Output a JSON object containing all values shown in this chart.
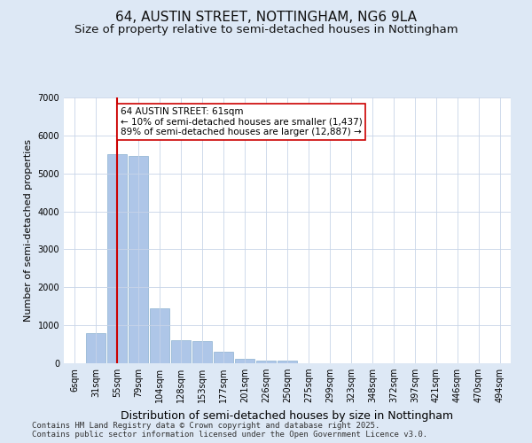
{
  "title": "64, AUSTIN STREET, NOTTINGHAM, NG6 9LA",
  "subtitle": "Size of property relative to semi-detached houses in Nottingham",
  "xlabel": "Distribution of semi-detached houses by size in Nottingham",
  "ylabel": "Number of semi-detached properties",
  "categories": [
    "6sqm",
    "31sqm",
    "55sqm",
    "79sqm",
    "104sqm",
    "128sqm",
    "153sqm",
    "177sqm",
    "201sqm",
    "226sqm",
    "250sqm",
    "275sqm",
    "299sqm",
    "323sqm",
    "348sqm",
    "372sqm",
    "397sqm",
    "421sqm",
    "446sqm",
    "470sqm",
    "494sqm"
  ],
  "values": [
    5,
    800,
    5500,
    5450,
    1450,
    600,
    580,
    310,
    120,
    75,
    60,
    0,
    0,
    0,
    0,
    0,
    0,
    0,
    0,
    0,
    0
  ],
  "bar_color": "#aec6e8",
  "bar_edge_color": "#8ab0d0",
  "vline_x": 2,
  "vline_color": "#cc0000",
  "annotation_text": "64 AUSTIN STREET: 61sqm\n← 10% of semi-detached houses are smaller (1,437)\n89% of semi-detached houses are larger (12,887) →",
  "annotation_box_color": "#ffffff",
  "annotation_border_color": "#cc0000",
  "ylim": [
    0,
    7000
  ],
  "yticks": [
    0,
    1000,
    2000,
    3000,
    4000,
    5000,
    6000,
    7000
  ],
  "bg_color": "#dde8f5",
  "plot_bg_color": "#ffffff",
  "footer": "Contains HM Land Registry data © Crown copyright and database right 2025.\nContains public sector information licensed under the Open Government Licence v3.0.",
  "title_fontsize": 11,
  "subtitle_fontsize": 9.5,
  "xlabel_fontsize": 9,
  "ylabel_fontsize": 8,
  "footer_fontsize": 6.5,
  "grid_color": "#c8d4e8",
  "annotation_fontsize": 7.5,
  "tick_fontsize": 7
}
